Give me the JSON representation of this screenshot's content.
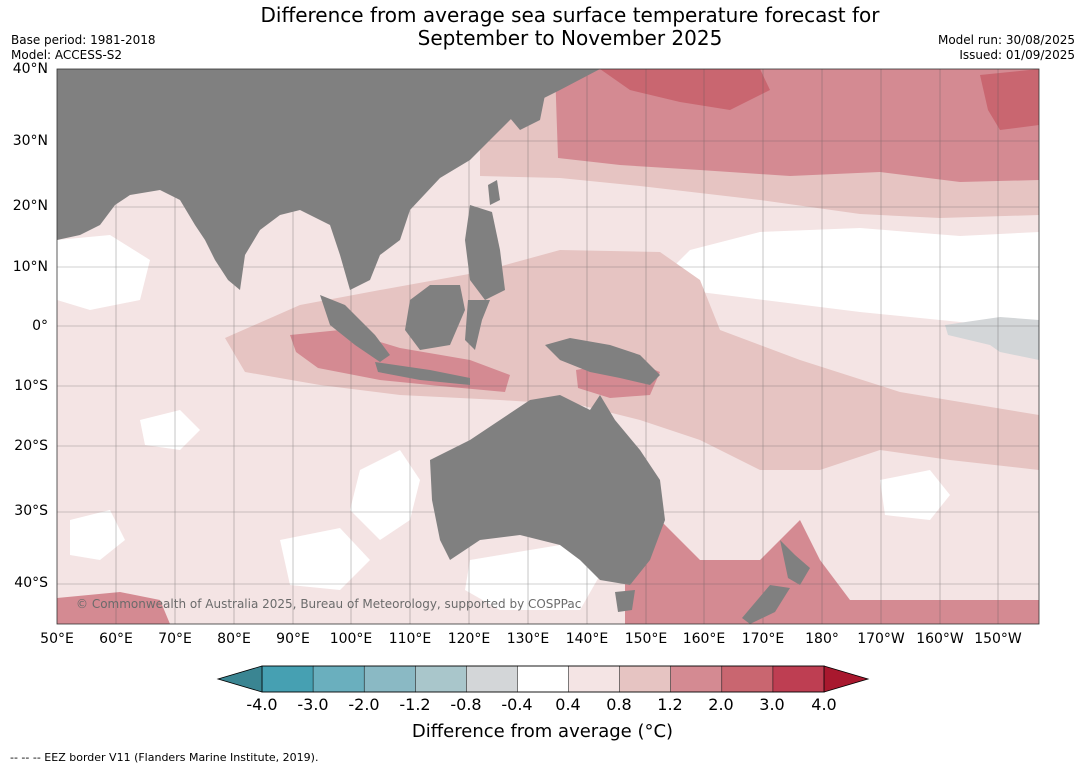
{
  "title_line1": "Difference from average sea surface temperature forecast for",
  "title_line2": "September to November 2025",
  "meta_left": [
    "Base period: 1981-2018",
    "Model: ACCESS-S2"
  ],
  "meta_right": [
    "Model run: 30/08/2025",
    "Issued: 01/09/2025"
  ],
  "lat_labels": [
    "40°N",
    "30°N",
    "20°N",
    "10°N",
    "0°",
    "10°S",
    "20°S",
    "30°S",
    "40°S"
  ],
  "lon_labels": [
    "50°E",
    "60°E",
    "70°E",
    "80°E",
    "90°E",
    "100°E",
    "110°E",
    "120°E",
    "130°E",
    "140°E",
    "150°E",
    "160°E",
    "170°E",
    "180°",
    "170°W",
    "160°W",
    "150°W"
  ],
  "copyright": "© Commonwealth of Australia 2025, Bureau of Meteorology, supported by COSPPac",
  "colorbar": {
    "ticks": [
      "-4.0",
      "-3.0",
      "-2.0",
      "-1.2",
      "-0.8",
      "-0.4",
      "0.4",
      "0.8",
      "1.2",
      "2.0",
      "3.0",
      "4.0"
    ],
    "colors": [
      "#46a0b2",
      "#6aafbe",
      "#8ab9c4",
      "#a9c6cb",
      "#d3d6d8",
      "#ffffff",
      "#f4e4e4",
      "#e6c4c2",
      "#d48a92",
      "#c96670",
      "#be3e52"
    ],
    "extend_low_color": "#3a8592",
    "extend_high_color": "#a8182e",
    "label": "Difference from average (°C)"
  },
  "land_color": "#808080",
  "eez_note": "--  --  -- EEZ border V11 (Flanders Marine Institute, 2019)."
}
